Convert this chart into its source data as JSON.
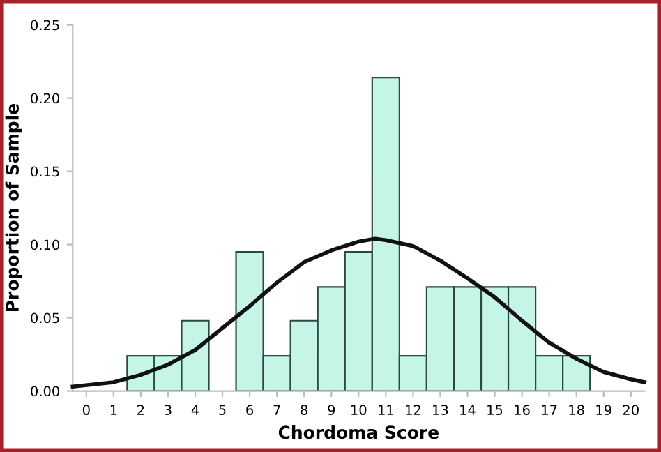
{
  "chart_data": {
    "type": "histogram",
    "xlabel": "Chordoma Score",
    "ylabel": "Proportion of Sample",
    "bins": [
      -0.5,
      0.5,
      1.5,
      2.5,
      3.5,
      4.5,
      5.5,
      6.5,
      7.5,
      8.5,
      9.5,
      10.5,
      11.5,
      12.5,
      13.5,
      14.5,
      15.5,
      16.5,
      17.5,
      18.5,
      19.5,
      20.5
    ],
    "values": [
      0,
      0,
      0.024,
      0.024,
      0.048,
      0,
      0.095,
      0.024,
      0.048,
      0.071,
      0.095,
      0.214,
      0.024,
      0.071,
      0.071,
      0.071,
      0.071,
      0.024,
      0.024,
      0,
      0
    ],
    "color": "#c4f5e6",
    "series": [
      {
        "type": "line",
        "color": "#111111",
        "x": [
          -0.5,
          1,
          2,
          3,
          4,
          5,
          6,
          7,
          8,
          9,
          10,
          10.6,
          11,
          12,
          13,
          14,
          15,
          16,
          17,
          18,
          19,
          20,
          20.5
        ],
        "values": [
          0.003,
          0.006,
          0.011,
          0.018,
          0.028,
          0.043,
          0.058,
          0.074,
          0.088,
          0.096,
          0.102,
          0.104,
          0.103,
          0.099,
          0.089,
          0.077,
          0.064,
          0.048,
          0.033,
          0.022,
          0.013,
          0.008,
          0.006
        ]
      }
    ],
    "xlim": [
      -0.5,
      20.5
    ],
    "xticks": [
      0,
      1,
      2,
      3,
      4,
      5,
      6,
      7,
      8,
      9,
      10,
      11,
      12,
      13,
      14,
      15,
      16,
      17,
      18,
      19,
      20
    ],
    "ylim": [
      0,
      0.25
    ],
    "yticks": [
      {
        "value": 0,
        "label": "0.00"
      },
      {
        "value": 0.05,
        "label": "0.05"
      },
      {
        "value": 0.1,
        "label": "0.10"
      },
      {
        "value": 0.15,
        "label": "0.15"
      },
      {
        "value": 0.2,
        "label": "0.20"
      },
      {
        "value": 0.25,
        "label": "0.25"
      }
    ],
    "grid": false,
    "legend": false
  }
}
